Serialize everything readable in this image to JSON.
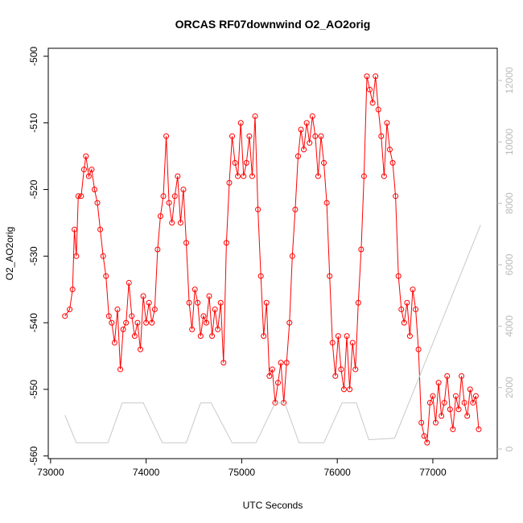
{
  "chart_data": {
    "type": "line",
    "title": "ORCAS RF07downwind O2_AO2orig",
    "x_label": "UTC Seconds",
    "y_label": "O2_AO2orig",
    "xlim": [
      72976,
      77674
    ],
    "ylim": [
      -560.4,
      -498.8
    ],
    "y2lim": [
      -315,
      13048
    ],
    "xticks": [
      73000,
      74000,
      75000,
      76000,
      77000
    ],
    "yticks": [
      -500,
      -510,
      -520,
      -530,
      -540,
      -550,
      -560
    ],
    "y2ticks": [
      0,
      2000,
      4000,
      6000,
      8000,
      10000,
      12000
    ],
    "series": [
      {
        "color": "#ff0000",
        "markers": true,
        "x": [
          73150,
          73200,
          73230,
          73250,
          73270,
          73290,
          73320,
          73350,
          73370,
          73400,
          73430,
          73460,
          73490,
          73520,
          73550,
          73580,
          73610,
          73640,
          73670,
          73700,
          73730,
          73760,
          73790,
          73820,
          73850,
          73880,
          73910,
          73940,
          73970,
          74000,
          74030,
          74060,
          74090,
          74120,
          74150,
          74180,
          74210,
          74240,
          74270,
          74300,
          74330,
          74360,
          74390,
          74420,
          74450,
          74480,
          74510,
          74540,
          74570,
          74600,
          74630,
          74660,
          74690,
          74720,
          74750,
          74780,
          74810,
          74840,
          74870,
          74900,
          74930,
          74960,
          74990,
          75020,
          75050,
          75080,
          75110,
          75140,
          75170,
          75200,
          75230,
          75260,
          75290,
          75320,
          75350,
          75380,
          75410,
          75440,
          75470,
          75500,
          75530,
          75560,
          75590,
          75620,
          75650,
          75680,
          75710,
          75740,
          75770,
          75800,
          75830,
          75860,
          75890,
          75920,
          75950,
          75980,
          76010,
          76040,
          76070,
          76100,
          76130,
          76160,
          76190,
          76220,
          76250,
          76280,
          76310,
          76340,
          76370,
          76400,
          76430,
          76460,
          76490,
          76520,
          76550,
          76580,
          76610,
          76640,
          76670,
          76700,
          76730,
          76760,
          76790,
          76820,
          76850,
          76880,
          76910,
          76940,
          76970,
          77000,
          77030,
          77060,
          77090,
          77120,
          77150,
          77180,
          77210,
          77240,
          77270,
          77300,
          77330,
          77360,
          77390,
          77420,
          77450,
          77480
        ],
        "values": [
          -539,
          -538,
          -535,
          -526,
          -530,
          -521,
          -521,
          -517,
          -515,
          -518,
          -517,
          -520,
          -522,
          -526,
          -530,
          -533,
          -539,
          -540,
          -543,
          -538,
          -547,
          -541,
          -540,
          -534,
          -539,
          -542,
          -540,
          -544,
          -536,
          -540,
          -537,
          -540,
          -538,
          -529,
          -524,
          -521,
          -512,
          -522,
          -525,
          -521,
          -518,
          -525,
          -520,
          -528,
          -537,
          -541,
          -535,
          -537,
          -542,
          -539,
          -540,
          -536,
          -542,
          -538,
          -541,
          -537,
          -546,
          -528,
          -519,
          -512,
          -516,
          -518,
          -510,
          -518,
          -516,
          -512,
          -518,
          -509,
          -523,
          -533,
          -542,
          -537,
          -548,
          -547,
          -552,
          -549,
          -546,
          -552,
          -546,
          -540,
          -530,
          -523,
          -515,
          -511,
          -514,
          -510,
          -513,
          -509,
          -512,
          -518,
          -512,
          -516,
          -522,
          -533,
          -543,
          -548,
          -542,
          -547,
          -550,
          -542,
          -550,
          -543,
          -547,
          -537,
          -529,
          -518,
          -503,
          -505,
          -507,
          -503,
          -508,
          -512,
          -518,
          -510,
          -514,
          -516,
          -521,
          -533,
          -538,
          -540,
          -537,
          -542,
          -535,
          -538,
          -544,
          -555,
          -557,
          -558,
          -552,
          -551,
          -555,
          -549,
          -554,
          -552,
          -548,
          -553,
          -556,
          -551,
          -553,
          -548,
          -552,
          -554,
          -550,
          -552,
          -551,
          -556
        ]
      },
      {
        "color": "#c8c8c8",
        "axis": "y2",
        "markers": false,
        "x": [
          73150,
          73270,
          73600,
          73750,
          73970,
          74170,
          74420,
          74570,
          74680,
          74900,
          75150,
          75350,
          75450,
          75600,
          75860,
          76050,
          76200,
          76330,
          76600,
          77500
        ],
        "values": [
          1100,
          200,
          200,
          1500,
          1500,
          200,
          200,
          1500,
          1500,
          200,
          200,
          1500,
          1500,
          200,
          200,
          1500,
          1500,
          300,
          350,
          7300
        ]
      }
    ]
  }
}
